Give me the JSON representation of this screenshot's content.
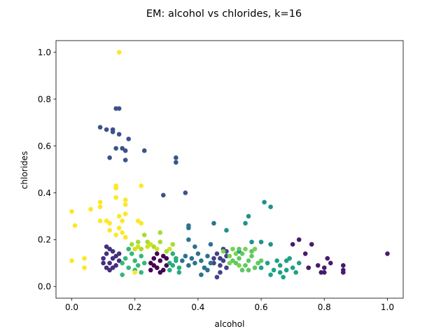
{
  "chart_data": {
    "type": "scatter",
    "title": "EM: alcohol vs chlorides, k=16",
    "xlabel": "alcohol",
    "ylabel": "chlorides",
    "xlim": [
      -0.05,
      1.05
    ],
    "ylim": [
      -0.05,
      1.05
    ],
    "xticks": [
      "0.0",
      "0.2",
      "0.4",
      "0.6",
      "0.8",
      "1.0"
    ],
    "yticks": [
      "0.0",
      "0.2",
      "0.4",
      "0.6",
      "0.8",
      "1.0"
    ],
    "grid": false,
    "series": [
      {
        "color": "#440154",
        "points": [
          [
            0.25,
            0.1
          ],
          [
            0.26,
            0.12
          ],
          [
            0.27,
            0.08
          ],
          [
            0.28,
            0.11
          ],
          [
            0.29,
            0.13
          ],
          [
            0.3,
            0.09
          ],
          [
            0.27,
            0.14
          ],
          [
            0.25,
            0.07
          ],
          [
            0.29,
            0.07
          ],
          [
            0.26,
            0.09
          ],
          [
            0.28,
            0.06
          ],
          [
            0.3,
            0.12
          ]
        ]
      },
      {
        "color": "#481A6C",
        "points": [
          [
            0.7,
            0.18
          ],
          [
            0.72,
            0.2
          ],
          [
            0.74,
            0.14
          ],
          [
            0.76,
            0.18
          ],
          [
            0.78,
            0.09
          ],
          [
            0.79,
            0.06
          ],
          [
            0.8,
            0.06
          ],
          [
            0.81,
            0.12
          ],
          [
            0.82,
            0.1
          ],
          [
            0.86,
            0.09
          ],
          [
            0.86,
            0.07
          ],
          [
            0.86,
            0.06
          ],
          [
            1.0,
            0.14
          ],
          [
            0.75,
            0.08
          ],
          [
            0.8,
            0.08
          ]
        ]
      },
      {
        "color": "#472F7D",
        "points": [
          [
            0.1,
            0.12
          ],
          [
            0.11,
            0.14
          ],
          [
            0.12,
            0.1
          ],
          [
            0.12,
            0.16
          ],
          [
            0.13,
            0.08
          ],
          [
            0.14,
            0.13
          ],
          [
            0.15,
            0.11
          ],
          [
            0.11,
            0.08
          ],
          [
            0.13,
            0.15
          ],
          [
            0.14,
            0.09
          ],
          [
            0.15,
            0.14
          ],
          [
            0.1,
            0.1
          ],
          [
            0.12,
            0.07
          ],
          [
            0.13,
            0.12
          ],
          [
            0.11,
            0.17
          ]
        ]
      },
      {
        "color": "#414487",
        "points": [
          [
            0.45,
            0.12
          ],
          [
            0.46,
            0.14
          ],
          [
            0.47,
            0.09
          ],
          [
            0.48,
            0.11
          ],
          [
            0.49,
            0.13
          ],
          [
            0.47,
            0.06
          ],
          [
            0.46,
            0.04
          ],
          [
            0.48,
            0.16
          ],
          [
            0.49,
            0.08
          ],
          [
            0.45,
            0.1
          ],
          [
            0.47,
            0.12
          ],
          [
            0.49,
            0.15
          ]
        ]
      },
      {
        "color": "#3B528B",
        "points": [
          [
            0.09,
            0.68
          ],
          [
            0.11,
            0.67
          ],
          [
            0.13,
            0.67
          ],
          [
            0.14,
            0.76
          ],
          [
            0.15,
            0.76
          ],
          [
            0.13,
            0.66
          ],
          [
            0.15,
            0.65
          ],
          [
            0.18,
            0.63
          ],
          [
            0.14,
            0.59
          ],
          [
            0.16,
            0.59
          ],
          [
            0.17,
            0.58
          ],
          [
            0.12,
            0.55
          ],
          [
            0.17,
            0.54
          ],
          [
            0.23,
            0.58
          ],
          [
            0.33,
            0.55
          ],
          [
            0.33,
            0.53
          ],
          [
            0.29,
            0.39
          ],
          [
            0.36,
            0.4
          ]
        ]
      },
      {
        "color": "#2C728E",
        "points": [
          [
            0.35,
            0.11
          ],
          [
            0.36,
            0.13
          ],
          [
            0.37,
            0.09
          ],
          [
            0.38,
            0.12
          ],
          [
            0.39,
            0.1
          ],
          [
            0.4,
            0.14
          ],
          [
            0.41,
            0.11
          ],
          [
            0.42,
            0.08
          ],
          [
            0.43,
            0.13
          ],
          [
            0.44,
            0.1
          ],
          [
            0.37,
            0.2
          ],
          [
            0.41,
            0.05
          ],
          [
            0.44,
            0.18
          ],
          [
            0.37,
            0.26
          ],
          [
            0.37,
            0.25
          ],
          [
            0.45,
            0.27
          ],
          [
            0.39,
            0.17
          ],
          [
            0.43,
            0.07
          ]
        ]
      },
      {
        "color": "#21918C",
        "points": [
          [
            0.61,
            0.36
          ],
          [
            0.63,
            0.34
          ],
          [
            0.56,
            0.3
          ],
          [
            0.49,
            0.24
          ],
          [
            0.57,
            0.19
          ],
          [
            0.6,
            0.19
          ],
          [
            0.63,
            0.18
          ],
          [
            0.55,
            0.27
          ],
          [
            0.53,
            0.15
          ]
        ]
      },
      {
        "color": "#1FA187",
        "points": [
          [
            0.6,
            0.08
          ],
          [
            0.62,
            0.1
          ],
          [
            0.64,
            0.07
          ],
          [
            0.66,
            0.09
          ],
          [
            0.68,
            0.11
          ],
          [
            0.7,
            0.08
          ],
          [
            0.67,
            0.04
          ],
          [
            0.69,
            0.12
          ],
          [
            0.71,
            0.06
          ],
          [
            0.65,
            0.11
          ],
          [
            0.63,
            0.05
          ],
          [
            0.72,
            0.1
          ],
          [
            0.66,
            0.06
          ],
          [
            0.68,
            0.07
          ]
        ]
      },
      {
        "color": "#27AD81",
        "points": [
          [
            0.32,
            0.09
          ],
          [
            0.33,
            0.12
          ],
          [
            0.34,
            0.08
          ],
          [
            0.31,
            0.1
          ],
          [
            0.32,
            0.14
          ],
          [
            0.34,
            0.06
          ],
          [
            0.33,
            0.11
          ],
          [
            0.31,
            0.07
          ]
        ]
      },
      {
        "color": "#35B779",
        "points": [
          [
            0.16,
            0.1
          ],
          [
            0.17,
            0.12
          ],
          [
            0.18,
            0.08
          ],
          [
            0.19,
            0.14
          ],
          [
            0.2,
            0.11
          ],
          [
            0.21,
            0.09
          ],
          [
            0.22,
            0.13
          ],
          [
            0.23,
            0.1
          ],
          [
            0.16,
            0.05
          ],
          [
            0.18,
            0.16
          ],
          [
            0.2,
            0.07
          ],
          [
            0.22,
            0.06
          ]
        ]
      },
      {
        "color": "#5EC962",
        "points": [
          [
            0.52,
            0.1
          ],
          [
            0.53,
            0.12
          ],
          [
            0.54,
            0.14
          ],
          [
            0.55,
            0.09
          ],
          [
            0.56,
            0.11
          ],
          [
            0.57,
            0.13
          ],
          [
            0.58,
            0.08
          ],
          [
            0.59,
            0.1
          ],
          [
            0.53,
            0.16
          ],
          [
            0.57,
            0.15
          ],
          [
            0.54,
            0.07
          ],
          [
            0.51,
            0.11
          ],
          [
            0.6,
            0.11
          ],
          [
            0.56,
            0.07
          ]
        ]
      },
      {
        "color": "#7AD151",
        "points": [
          [
            0.5,
            0.13
          ],
          [
            0.51,
            0.16
          ],
          [
            0.52,
            0.14
          ],
          [
            0.5,
            0.1
          ],
          [
            0.55,
            0.16
          ],
          [
            0.48,
            0.15
          ],
          [
            0.58,
            0.16
          ],
          [
            0.53,
            0.09
          ]
        ]
      },
      {
        "color": "#A5DB36",
        "points": [
          [
            0.19,
            0.18
          ],
          [
            0.21,
            0.19
          ],
          [
            0.23,
            0.22
          ],
          [
            0.24,
            0.19
          ],
          [
            0.28,
            0.19
          ],
          [
            0.28,
            0.23
          ],
          [
            0.32,
            0.18
          ],
          [
            0.22,
            0.16
          ],
          [
            0.26,
            0.17
          ],
          [
            0.3,
            0.15
          ]
        ]
      },
      {
        "color": "#D2E21B",
        "points": [
          [
            0.2,
            0.16
          ],
          [
            0.24,
            0.17
          ],
          [
            0.27,
            0.16
          ],
          [
            0.31,
            0.16
          ],
          [
            0.25,
            0.18
          ],
          [
            0.21,
            0.17
          ]
        ]
      },
      {
        "color": "#FDE725",
        "points": [
          [
            0.15,
            1.0
          ],
          [
            0.15,
            1.0
          ],
          [
            0.14,
            0.43
          ],
          [
            0.14,
            0.42
          ],
          [
            0.22,
            0.43
          ],
          [
            0.14,
            0.38
          ],
          [
            0.17,
            0.37
          ],
          [
            0.17,
            0.35
          ],
          [
            0.09,
            0.36
          ],
          [
            0.09,
            0.34
          ],
          [
            0.06,
            0.33
          ],
          [
            0.0,
            0.32
          ],
          [
            0.17,
            0.31
          ],
          [
            0.15,
            0.3
          ],
          [
            0.16,
            0.28
          ],
          [
            0.11,
            0.28
          ],
          [
            0.12,
            0.27
          ],
          [
            0.09,
            0.28
          ],
          [
            0.01,
            0.26
          ],
          [
            0.15,
            0.25
          ],
          [
            0.16,
            0.23
          ],
          [
            0.17,
            0.21
          ],
          [
            0.12,
            0.24
          ],
          [
            0.14,
            0.22
          ],
          [
            0.21,
            0.28
          ],
          [
            0.22,
            0.27
          ],
          [
            0.04,
            0.12
          ],
          [
            0.0,
            0.11
          ],
          [
            0.04,
            0.08
          ],
          [
            0.2,
            0.06
          ]
        ]
      }
    ]
  }
}
